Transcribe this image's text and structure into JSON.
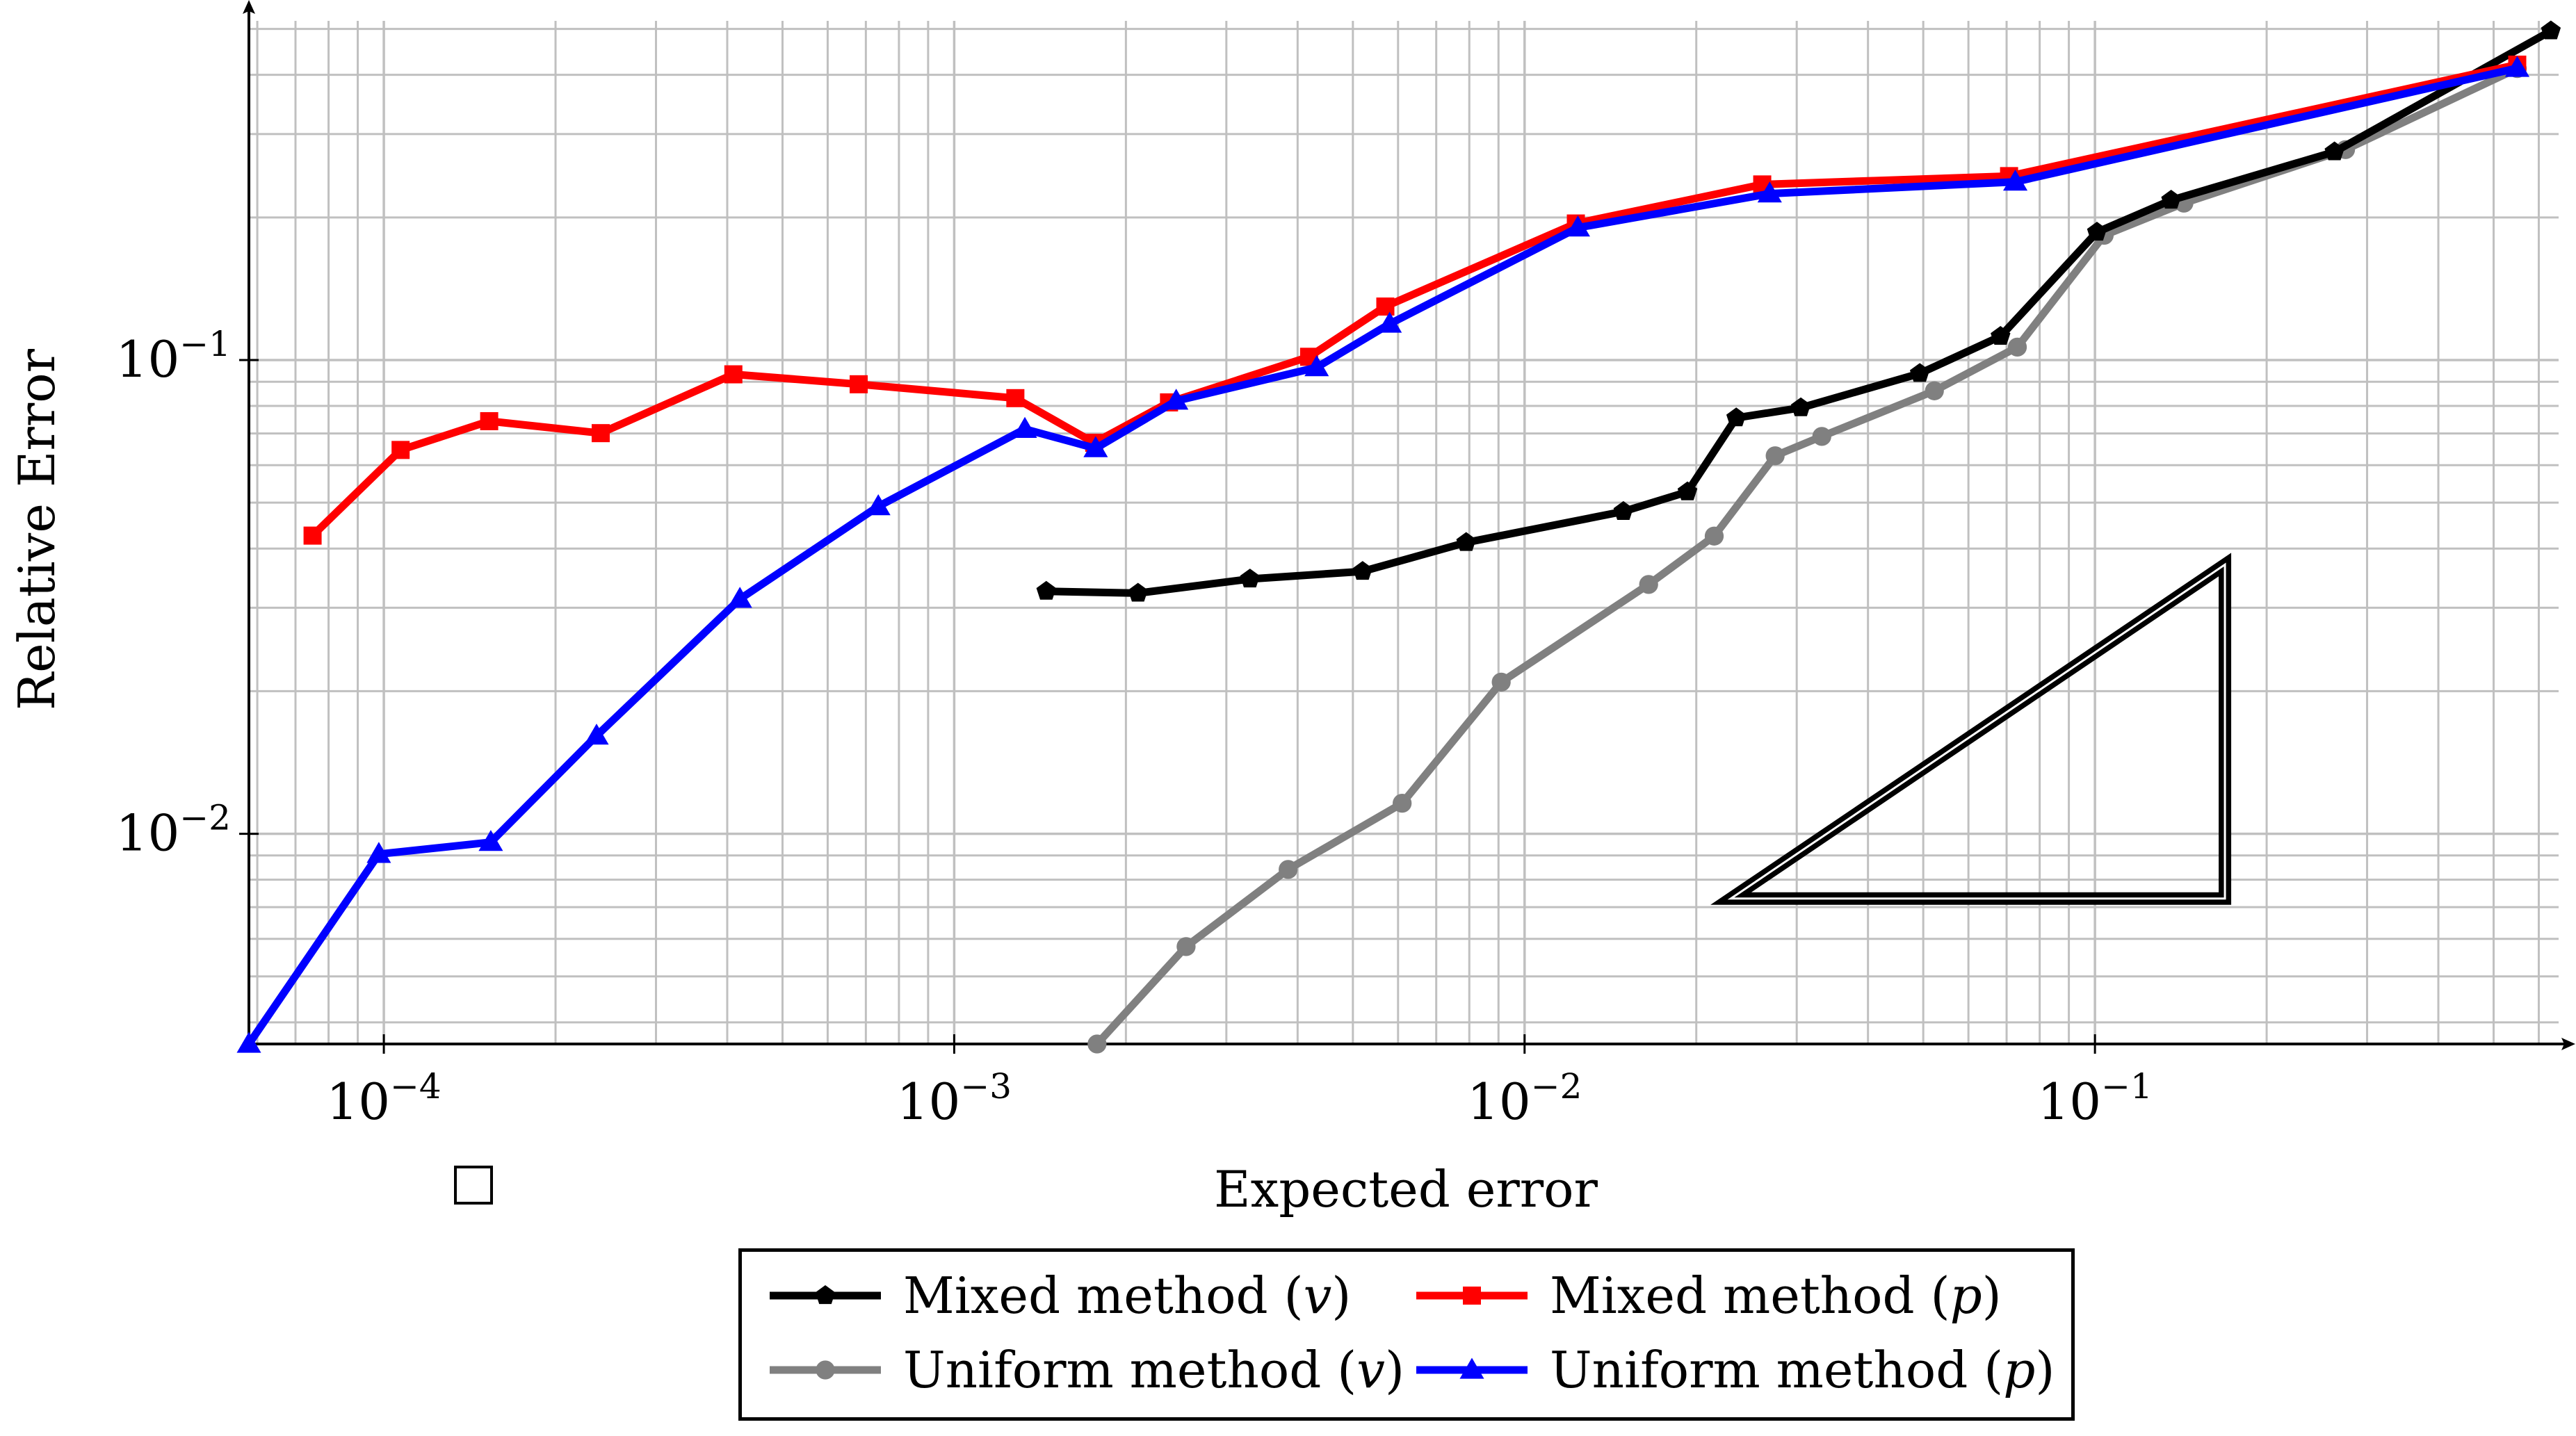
{
  "chart_data": {
    "type": "line",
    "title": "",
    "xlabel": "Expected error",
    "ylabel": "Relative Error",
    "xscale": "log",
    "yscale": "log",
    "xlim": [
      5.8e-05,
      0.65
    ],
    "ylim": [
      0.0036,
      0.52
    ],
    "grid": true,
    "x_ticks": [
      {
        "value": 0.0001,
        "base": "10",
        "exp": "−4"
      },
      {
        "value": 0.001,
        "base": "10",
        "exp": "−3"
      },
      {
        "value": 0.01,
        "base": "10",
        "exp": "−2"
      },
      {
        "value": 0.1,
        "base": "10",
        "exp": "−1"
      }
    ],
    "y_ticks": [
      {
        "value": 0.01,
        "base": "10",
        "exp": "−2"
      },
      {
        "value": 0.1,
        "base": "10",
        "exp": "−1"
      }
    ],
    "legend_position": "bottom",
    "series": [
      {
        "name": "Mixed method",
        "var": "v",
        "color": "#000000",
        "marker": "pentagon",
        "points": [
          [
            0.00145,
            0.0325
          ],
          [
            0.0021,
            0.0322
          ],
          [
            0.0033,
            0.0345
          ],
          [
            0.0052,
            0.0358
          ],
          [
            0.0079,
            0.0412
          ],
          [
            0.0149,
            0.0479
          ],
          [
            0.0193,
            0.0527
          ],
          [
            0.0235,
            0.0755
          ],
          [
            0.0305,
            0.0793
          ],
          [
            0.0493,
            0.0937
          ],
          [
            0.0683,
            0.1122
          ],
          [
            0.1008,
            0.1862
          ],
          [
            0.136,
            0.2175
          ],
          [
            0.263,
            0.2751
          ],
          [
            0.63,
            0.4952
          ]
        ]
      },
      {
        "name": "Mixed method",
        "var": "p",
        "color": "#ff0000",
        "marker": "square",
        "points": [
          [
            7.5e-05,
            0.0426
          ],
          [
            0.000107,
            0.0646
          ],
          [
            0.000153,
            0.0743
          ],
          [
            0.00024,
            0.0701
          ],
          [
            0.00041,
            0.0933
          ],
          [
            0.00068,
            0.0889
          ],
          [
            0.00128,
            0.0831
          ],
          [
            0.00176,
            0.0669
          ],
          [
            0.00238,
            0.0814
          ],
          [
            0.00419,
            0.1016
          ],
          [
            0.0057,
            0.1297
          ],
          [
            0.0123,
            0.1942
          ],
          [
            0.0261,
            0.2348
          ],
          [
            0.0707,
            0.2445
          ],
          [
            0.55,
            0.4203
          ]
        ]
      },
      {
        "name": "Uniform method",
        "var": "v",
        "color": "#808080",
        "marker": "circle",
        "points": [
          [
            0.00178,
            0.0036
          ],
          [
            0.00255,
            0.00578
          ],
          [
            0.00385,
            0.00841
          ],
          [
            0.0061,
            0.0116
          ],
          [
            0.0091,
            0.0209
          ],
          [
            0.0165,
            0.0336
          ],
          [
            0.0215,
            0.0425
          ],
          [
            0.0275,
            0.0628
          ],
          [
            0.0332,
            0.069
          ],
          [
            0.0523,
            0.0861
          ],
          [
            0.0731,
            0.1065
          ],
          [
            0.1038,
            0.1834
          ],
          [
            0.1432,
            0.2144
          ],
          [
            0.275,
            0.2781
          ],
          [
            0.55,
            0.4124
          ]
        ]
      },
      {
        "name": "Uniform method",
        "var": "p",
        "color": "#0000ff",
        "marker": "triangle",
        "points": [
          [
            5.8e-05,
            0.0036
          ],
          [
            9.8e-05,
            0.00906
          ],
          [
            0.000154,
            0.0096
          ],
          [
            0.000236,
            0.0161
          ],
          [
            0.000421,
            0.0313
          ],
          [
            0.000736,
            0.0491
          ],
          [
            0.00133,
            0.0715
          ],
          [
            0.00177,
            0.0651
          ],
          [
            0.00245,
            0.082
          ],
          [
            0.00432,
            0.0965
          ],
          [
            0.0058,
            0.1192
          ],
          [
            0.0124,
            0.1903
          ],
          [
            0.0269,
            0.2245
          ],
          [
            0.0725,
            0.2378
          ],
          [
            0.55,
            0.4132
          ]
        ]
      }
    ],
    "annotation": {
      "type": "slope-triangle",
      "vertices": [
        [
          0.023,
          0.0073
        ],
        [
          0.169,
          0.0073
        ],
        [
          0.169,
          0.037
        ]
      ]
    },
    "legend": [
      {
        "name": "Mixed method",
        "var": "v",
        "series": 0
      },
      {
        "name": "Mixed method",
        "var": "p",
        "series": 1
      },
      {
        "name": "Uniform method",
        "var": "v",
        "series": 2
      },
      {
        "name": "Uniform method",
        "var": "p",
        "series": 3
      }
    ]
  },
  "colors": {
    "grid": "#c0c0c0",
    "axis": "#000000",
    "background": "#ffffff"
  }
}
